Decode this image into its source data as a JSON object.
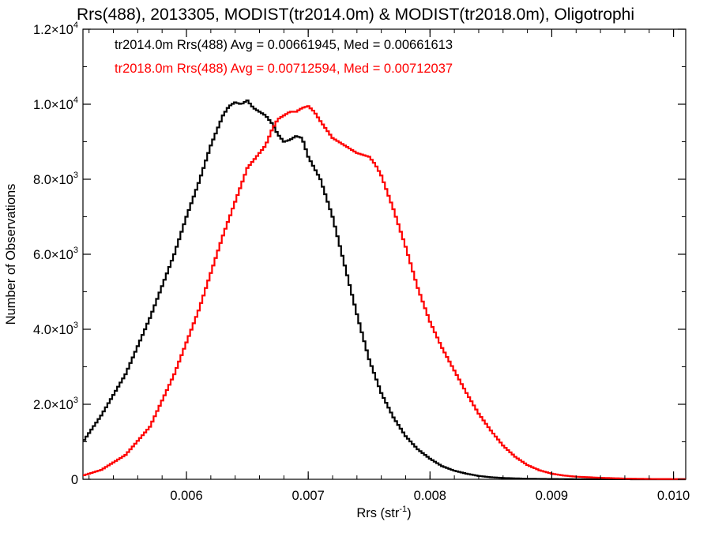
{
  "chart_data": {
    "type": "line",
    "title": "Rrs(488), 2013305, MODIST(tr2014.0m) & MODIST(tr2018.0m), Oligotrophi",
    "xlabel_base": "Rrs (str",
    "xlabel_sup": "-1",
    "xlabel_end": ")",
    "ylabel": "Number of Observations",
    "xlim": [
      0.00515,
      0.0101
    ],
    "ylim": [
      0,
      12000
    ],
    "x_ticks": [
      {
        "value": 0.006,
        "label": "0.006"
      },
      {
        "value": 0.007,
        "label": "0.007"
      },
      {
        "value": 0.008,
        "label": "0.008"
      },
      {
        "value": 0.009,
        "label": "0.009"
      },
      {
        "value": 0.01,
        "label": "0.010"
      }
    ],
    "y_ticks": [
      {
        "value": 0,
        "mant": "0",
        "exp": ""
      },
      {
        "value": 2000,
        "mant": "2.0×10",
        "exp": "3"
      },
      {
        "value": 4000,
        "mant": "4.0×10",
        "exp": "3"
      },
      {
        "value": 6000,
        "mant": "6.0×10",
        "exp": "3"
      },
      {
        "value": 8000,
        "mant": "8.0×10",
        "exp": "3"
      },
      {
        "value": 10000,
        "mant": "1.0×10",
        "exp": "4"
      },
      {
        "value": 12000,
        "mant": "1.2×10",
        "exp": "4"
      }
    ],
    "grid": false,
    "legend_position": "top-left",
    "series": [
      {
        "name": "tr2014.0m",
        "color": "#000000",
        "stat_text": "tr2014.0m Rrs(488) Avg = 0.00661945, Med = 0.00661613",
        "x": [
          0.00515,
          0.0053,
          0.0055,
          0.0057,
          0.0059,
          0.006,
          0.0061,
          0.0062,
          0.00625,
          0.0063,
          0.00635,
          0.0064,
          0.00645,
          0.0065,
          0.00655,
          0.0066,
          0.00665,
          0.0067,
          0.00675,
          0.0068,
          0.00685,
          0.0069,
          0.00695,
          0.007,
          0.00705,
          0.0071,
          0.0072,
          0.0073,
          0.0074,
          0.0075,
          0.0076,
          0.0077,
          0.0078,
          0.0079,
          0.008,
          0.0081,
          0.0082,
          0.0083,
          0.0084,
          0.0085,
          0.0086,
          0.0088,
          0.009,
          0.0092,
          0.0094,
          0.0096,
          0.0098,
          0.0101
        ],
        "y": [
          1000,
          1700,
          2800,
          4300,
          6000,
          7000,
          7900,
          8900,
          9300,
          9700,
          9950,
          10050,
          10000,
          10100,
          9900,
          9800,
          9700,
          9500,
          9200,
          9000,
          9050,
          9150,
          9100,
          8600,
          8300,
          8000,
          7000,
          5700,
          4400,
          3200,
          2300,
          1650,
          1150,
          800,
          550,
          350,
          230,
          150,
          90,
          55,
          35,
          15,
          8,
          4,
          2,
          1,
          0,
          0
        ]
      },
      {
        "name": "tr2018.0m",
        "color": "#ff0000",
        "stat_text": "tr2018.0m Rrs(488) Avg = 0.00712594, Med = 0.00712037",
        "x": [
          0.00515,
          0.0053,
          0.0055,
          0.0057,
          0.0059,
          0.0061,
          0.0063,
          0.0064,
          0.0065,
          0.0066,
          0.00665,
          0.0067,
          0.00675,
          0.0068,
          0.00685,
          0.0069,
          0.00695,
          0.007,
          0.00705,
          0.0071,
          0.0072,
          0.0073,
          0.0074,
          0.0075,
          0.00755,
          0.0076,
          0.0077,
          0.0078,
          0.0079,
          0.008,
          0.0081,
          0.0082,
          0.0083,
          0.0084,
          0.0085,
          0.0086,
          0.0087,
          0.0088,
          0.0089,
          0.009,
          0.0091,
          0.0092,
          0.0094,
          0.0096,
          0.0098,
          0.0101
        ],
        "y": [
          100,
          250,
          650,
          1400,
          2800,
          4500,
          6500,
          7400,
          8300,
          8700,
          8900,
          9300,
          9600,
          9700,
          9800,
          9800,
          9900,
          9950,
          9800,
          9550,
          9100,
          8900,
          8700,
          8600,
          8400,
          8100,
          7200,
          6200,
          5100,
          4200,
          3500,
          2900,
          2300,
          1750,
          1300,
          900,
          600,
          380,
          240,
          150,
          100,
          70,
          40,
          20,
          10,
          5
        ]
      }
    ]
  }
}
